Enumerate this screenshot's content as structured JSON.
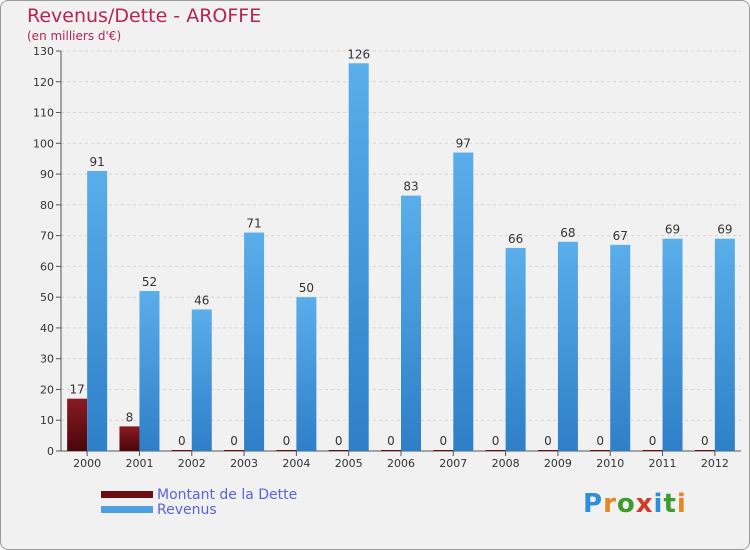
{
  "header": {
    "title": "Revenus/Dette - AROFFE",
    "subtitle": "(en milliers d'€)"
  },
  "legend": {
    "items": [
      {
        "label": "Montant de la Dette",
        "color": "#6b0e14"
      },
      {
        "label": "Revenus",
        "color": "#4d9fe0"
      }
    ]
  },
  "logo": {
    "letters": [
      "P",
      "r",
      "o",
      "x",
      "i",
      "t",
      "i"
    ],
    "colors": [
      "#2e8fd8",
      "#e7861f",
      "#3c9c2e",
      "#d23a2a",
      "#2e8fd8",
      "#3c9c2e",
      "#e7861f"
    ]
  },
  "chart_data": {
    "type": "bar",
    "title": "Revenus/Dette - AROFFE",
    "ylabel": "(en milliers d'€)",
    "xlabel": "",
    "categories": [
      "2000",
      "2001",
      "2002",
      "2003",
      "2004",
      "2005",
      "2006",
      "2007",
      "2008",
      "2009",
      "2010",
      "2011",
      "2012"
    ],
    "series": [
      {
        "name": "Montant de la Dette",
        "color": "#6b0e14",
        "values": [
          17,
          8,
          0,
          0,
          0,
          0,
          0,
          0,
          0,
          0,
          0,
          0,
          0
        ]
      },
      {
        "name": "Revenus",
        "color": "#4d9fe0",
        "values": [
          91,
          52,
          46,
          71,
          50,
          126,
          83,
          97,
          66,
          68,
          67,
          69,
          69
        ]
      }
    ],
    "ylim": [
      0,
      130
    ],
    "yticks": [
      0,
      10,
      20,
      30,
      40,
      50,
      60,
      70,
      80,
      90,
      100,
      110,
      120,
      130
    ],
    "grid": true,
    "legend_position": "bottom-left"
  }
}
